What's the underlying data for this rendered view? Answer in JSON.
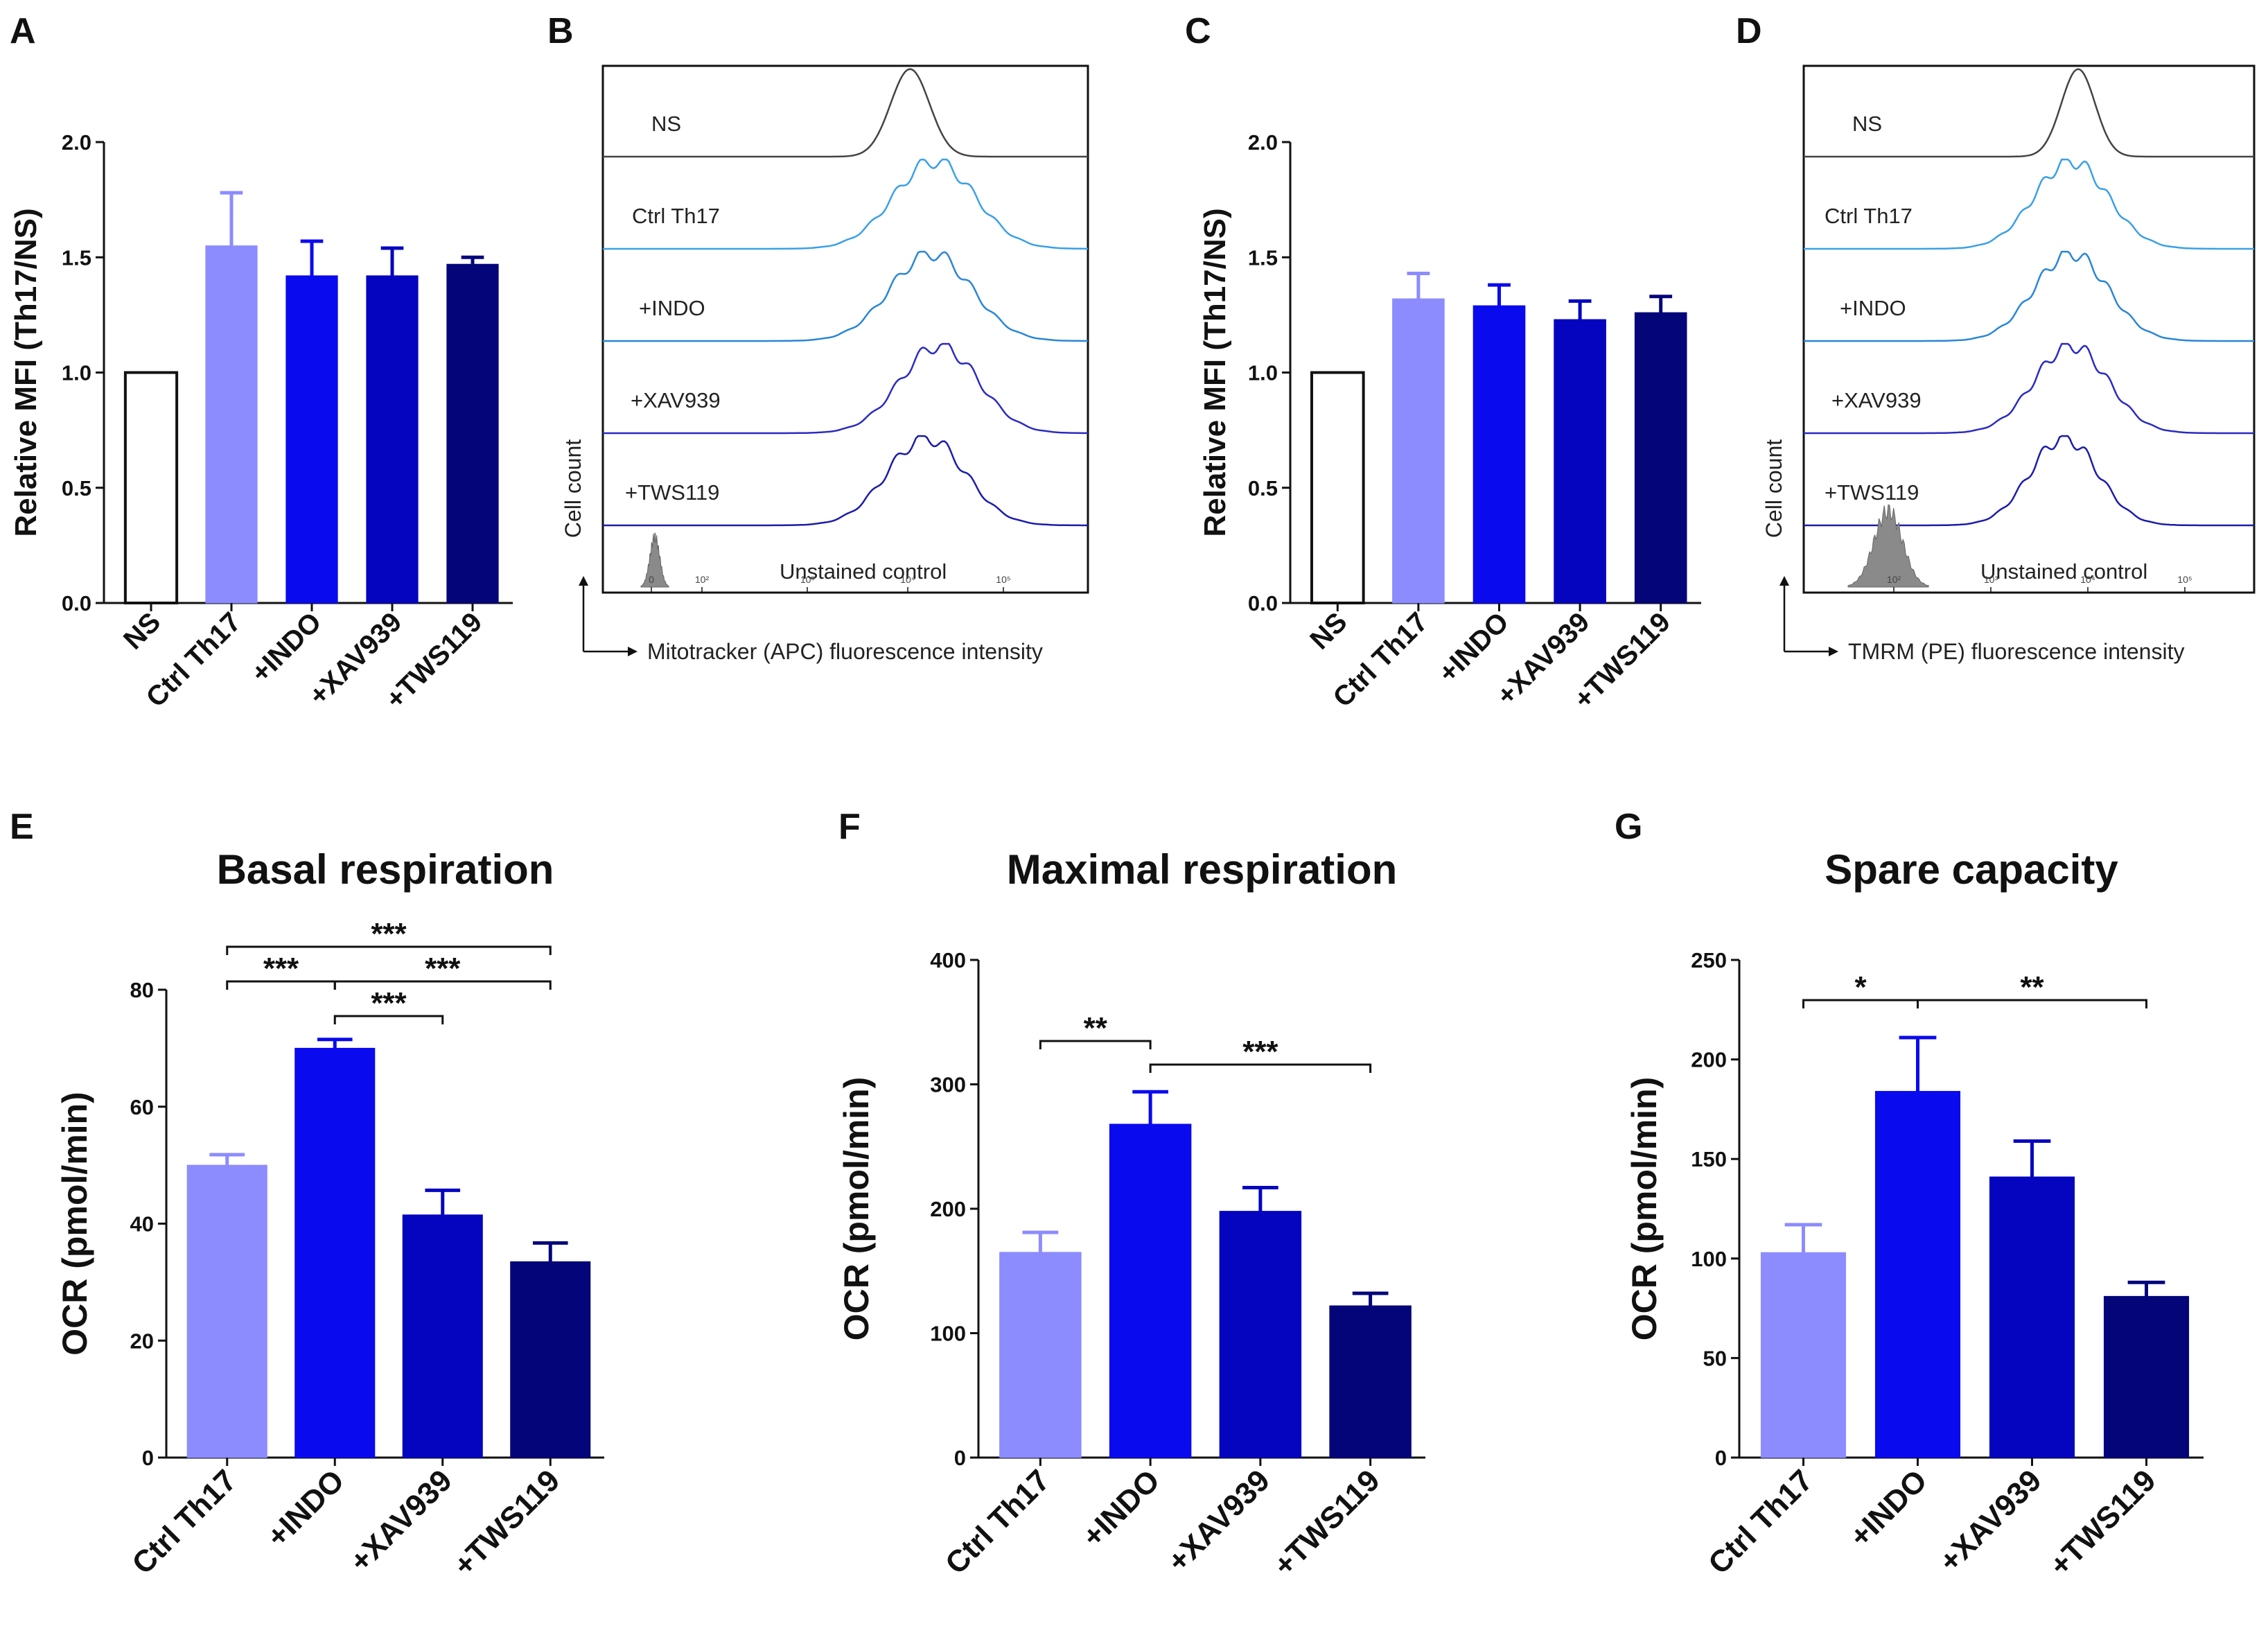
{
  "panels": {
    "A": "A",
    "B": "B",
    "C": "C",
    "D": "D",
    "E": "E",
    "F": "F",
    "G": "G"
  },
  "chart_data": [
    {
      "id": "A",
      "type": "bar",
      "title": "",
      "xlabel": "",
      "ylabel": "Relative MFI (Th17/NS)",
      "categories": [
        "NS",
        "Ctrl Th17",
        "+INDO",
        "+XAV939",
        "+TWS119"
      ],
      "values": [
        1.0,
        1.55,
        1.42,
        1.42,
        1.47
      ],
      "errors": [
        0,
        0.23,
        0.15,
        0.12,
        0.03
      ],
      "colors": [
        "#ffffff",
        "#8c8cff",
        "#0a0aee",
        "#0505c0",
        "#05057a"
      ],
      "ylim": [
        0,
        2.0
      ],
      "yticks": [
        "0.0",
        "0.5",
        "1.0",
        "1.5",
        "2.0"
      ],
      "significance": []
    },
    {
      "id": "B",
      "type": "histogram-overlay",
      "xlabel": "Mitotracker (APC) fluorescence intensity",
      "ylabel": "Cell count",
      "x_ticks": [
        "0",
        "10²",
        "10³",
        "10⁴",
        "10⁵"
      ],
      "traces": [
        {
          "label": "NS",
          "peak_log10": 3.9,
          "width": 0.12,
          "color": "#444444"
        },
        {
          "label": "Ctrl Th17",
          "peak_log10": 4.05,
          "width": 0.25,
          "color": "#3aa0e6"
        },
        {
          "label": "+INDO",
          "peak_log10": 4.03,
          "width": 0.25,
          "color": "#2a86d6"
        },
        {
          "label": "+XAV939",
          "peak_log10": 4.08,
          "width": 0.24,
          "color": "#2b2bc2"
        },
        {
          "label": "+TWS119",
          "peak_log10": 4.0,
          "width": 0.24,
          "color": "#1c1caa"
        }
      ],
      "unstained_label": "Unstained control"
    },
    {
      "id": "C",
      "type": "bar",
      "title": "",
      "xlabel": "",
      "ylabel": "Relative MFI (Th17/NS)",
      "categories": [
        "NS",
        "Ctrl Th17",
        "+INDO",
        "+XAV939",
        "+TWS119"
      ],
      "values": [
        1.0,
        1.32,
        1.29,
        1.23,
        1.26
      ],
      "errors": [
        0,
        0.11,
        0.09,
        0.08,
        0.07
      ],
      "colors": [
        "#ffffff",
        "#8c8cff",
        "#0a0aee",
        "#0505c0",
        "#05057a"
      ],
      "ylim": [
        0,
        2.0
      ],
      "yticks": [
        "0.0",
        "0.5",
        "1.0",
        "1.5",
        "2.0"
      ],
      "significance": []
    },
    {
      "id": "D",
      "type": "histogram-overlay",
      "xlabel": "TMRM (PE) fluorescence intensity",
      "ylabel": "Cell count",
      "x_ticks": [
        "10²",
        "10³",
        "10⁴",
        "10⁵"
      ],
      "traces": [
        {
          "label": "NS",
          "peak_log10": 3.75,
          "width": 0.12,
          "color": "#444444"
        },
        {
          "label": "Ctrl Th17",
          "peak_log10": 3.7,
          "width": 0.26,
          "color": "#3aa0e6"
        },
        {
          "label": "+INDO",
          "peak_log10": 3.7,
          "width": 0.26,
          "color": "#2a86d6"
        },
        {
          "label": "+XAV939",
          "peak_log10": 3.7,
          "width": 0.26,
          "color": "#2b2bc2"
        },
        {
          "label": "+TWS119",
          "peak_log10": 3.65,
          "width": 0.24,
          "color": "#1c1caa"
        }
      ],
      "unstained_label": "Unstained control"
    },
    {
      "id": "E",
      "type": "bar",
      "title": "Basal respiration",
      "xlabel": "",
      "ylabel": "OCR (pmol/min)",
      "categories": [
        "Ctrl Th17",
        "+INDO",
        "+XAV939",
        "+TWS119"
      ],
      "values": [
        50,
        70,
        41.5,
        33.5
      ],
      "errors": [
        1.8,
        1.5,
        4.2,
        3.2
      ],
      "colors": [
        "#8c8cff",
        "#0a0aee",
        "#0505c0",
        "#05057a"
      ],
      "ylim": [
        0,
        80
      ],
      "yticks": [
        "0",
        "20",
        "40",
        "60",
        "80"
      ],
      "significance": [
        {
          "from": 0,
          "to": 3,
          "label": "***",
          "level": 3
        },
        {
          "from": 0,
          "to": 1,
          "label": "***",
          "level": 2
        },
        {
          "from": 1,
          "to": 3,
          "label": "***",
          "level": 2
        },
        {
          "from": 1,
          "to": 2,
          "label": "***",
          "level": 1
        }
      ]
    },
    {
      "id": "F",
      "type": "bar",
      "title": "Maximal respiration",
      "xlabel": "",
      "ylabel": "OCR (pmol/min)",
      "categories": [
        "Ctrl Th17",
        "+INDO",
        "+XAV939",
        "+TWS119"
      ],
      "values": [
        165,
        268,
        198,
        122
      ],
      "errors": [
        16,
        26,
        19,
        10
      ],
      "colors": [
        "#8c8cff",
        "#0a0aee",
        "#0505c0",
        "#05057a"
      ],
      "ylim": [
        0,
        400
      ],
      "yticks": [
        "0",
        "100",
        "200",
        "300",
        "400"
      ],
      "significance": [
        {
          "from": 0,
          "to": 1,
          "label": "**",
          "level": 1
        },
        {
          "from": 1,
          "to": 3,
          "label": "***",
          "level": 2
        }
      ]
    },
    {
      "id": "G",
      "type": "bar",
      "title": "Spare capacity",
      "xlabel": "",
      "ylabel": "OCR (pmol/min)",
      "categories": [
        "Ctrl Th17",
        "+INDO",
        "+XAV939",
        "+TWS119"
      ],
      "values": [
        103,
        184,
        141,
        81
      ],
      "errors": [
        14,
        27,
        18,
        7
      ],
      "colors": [
        "#8c8cff",
        "#0a0aee",
        "#0505c0",
        "#05057a"
      ],
      "ylim": [
        0,
        250
      ],
      "yticks": [
        "0",
        "50",
        "100",
        "150",
        "200",
        "250"
      ],
      "significance": [
        {
          "from": 0,
          "to": 1,
          "label": "*",
          "level": 1
        },
        {
          "from": 1,
          "to": 3,
          "label": "**",
          "level": 1
        }
      ]
    }
  ]
}
